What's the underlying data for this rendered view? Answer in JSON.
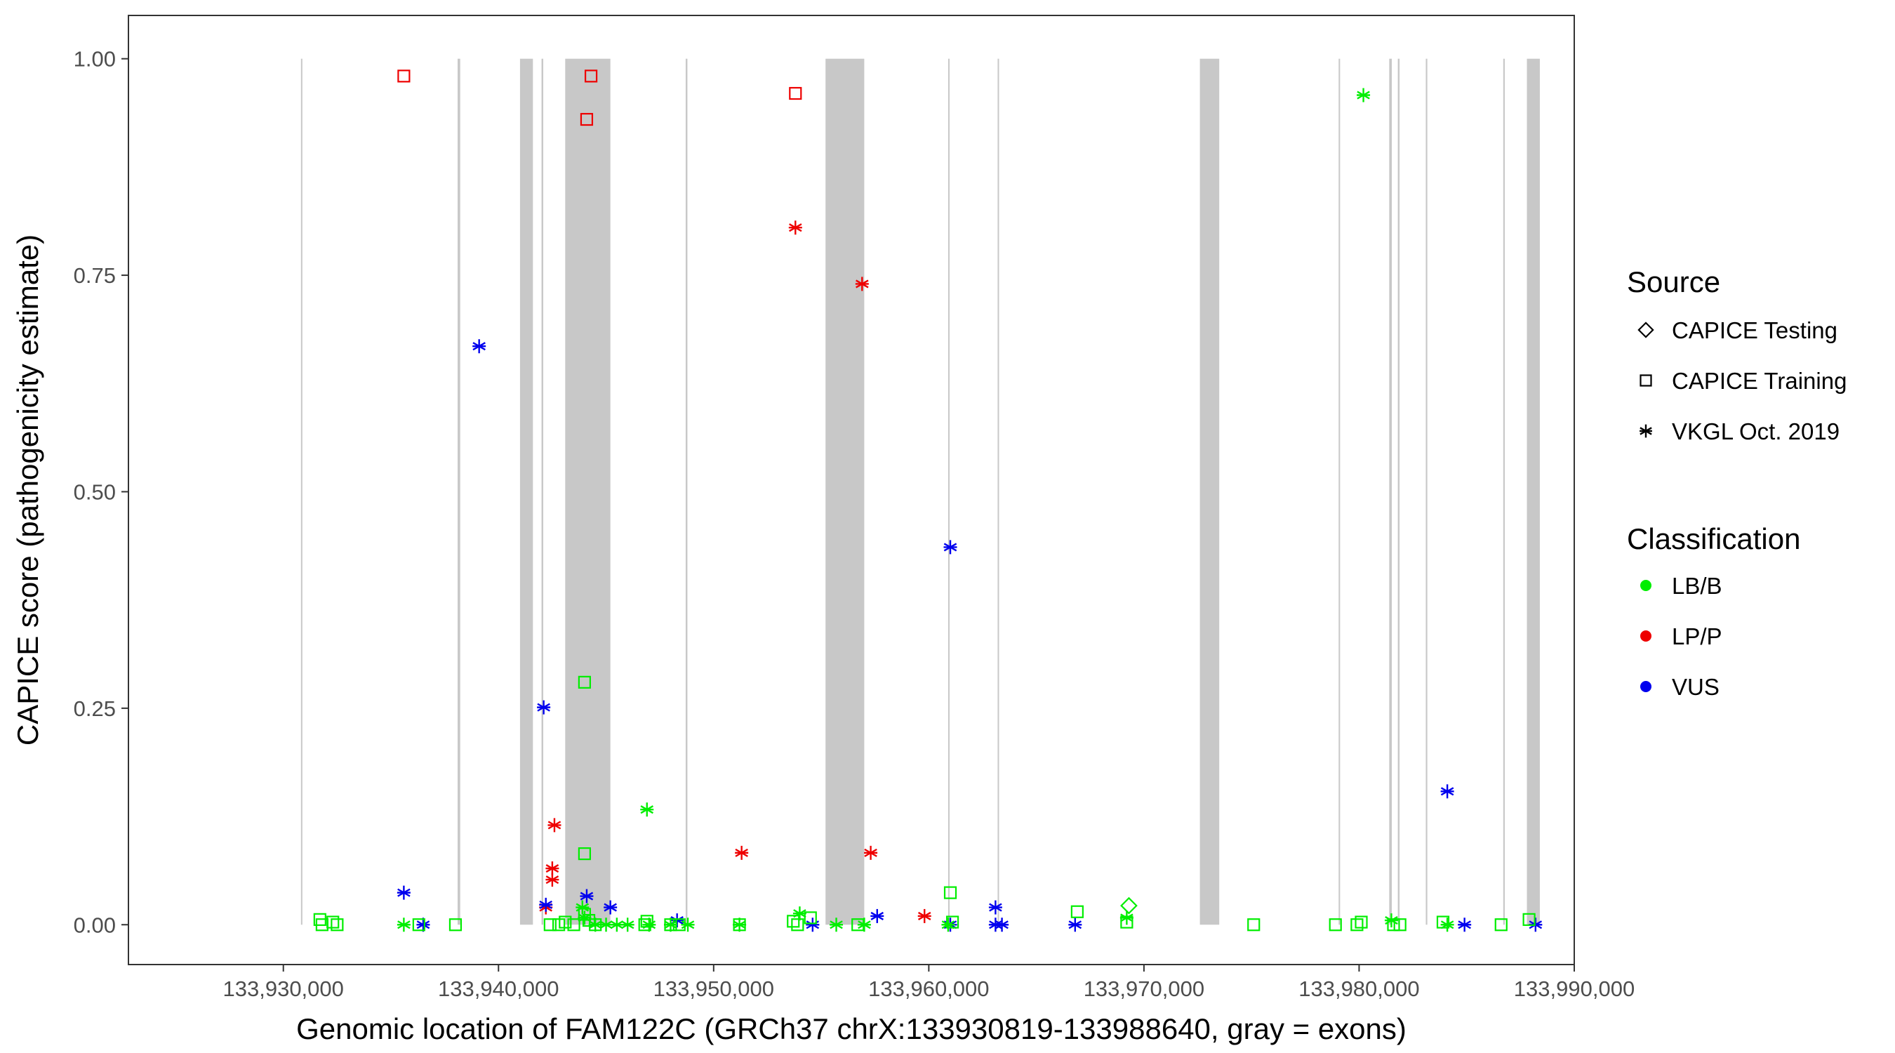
{
  "chart_data": {
    "type": "scatter",
    "title": "",
    "xlabel": "Genomic location of FAM122C (GRCh37 chrX:133930819-133988640, gray = exons)",
    "ylabel": "CAPICE score (pathogenicity estimate)",
    "xlim": [
      133922800,
      133990000
    ],
    "ylim": [
      -0.046,
      1.05
    ],
    "x_ticks": [
      133930000,
      133940000,
      133950000,
      133960000,
      133970000,
      133980000,
      133990000
    ],
    "x_tick_labels": [
      "133,930,000",
      "133,940,000",
      "133,950,000",
      "133,960,000",
      "133,970,000",
      "133,980,000",
      "133,990,000"
    ],
    "y_ticks": [
      0,
      0.25,
      0.5,
      0.75,
      1.0
    ],
    "y_tick_labels": [
      "0.00",
      "0.25",
      "0.50",
      "0.75",
      "1.00"
    ],
    "grid": false,
    "exons": [
      [
        133930819,
        133930880
      ],
      [
        133938100,
        133938220
      ],
      [
        133941000,
        133941600
      ],
      [
        133942000,
        133942080
      ],
      [
        133943100,
        133945200
      ],
      [
        133948700,
        133948780
      ],
      [
        133955200,
        133957000
      ],
      [
        133960900,
        133960960
      ],
      [
        133963200,
        133963260
      ],
      [
        133972600,
        133973500
      ],
      [
        133979050,
        133979110
      ],
      [
        133981400,
        133981520
      ],
      [
        133981800,
        133981880
      ],
      [
        133983100,
        133983170
      ],
      [
        133986700,
        133986770
      ],
      [
        133987800,
        133988400
      ]
    ],
    "legend": {
      "position": "right",
      "source_title": "Source",
      "source_entries": [
        {
          "label": "CAPICE Testing",
          "shape": "diamond"
        },
        {
          "label": "CAPICE Training",
          "shape": "square"
        },
        {
          "label": "VKGL Oct. 2019",
          "shape": "asterisk"
        }
      ],
      "class_title": "Classification",
      "class_entries": [
        {
          "label": "LB/B",
          "color": "#00ee00"
        },
        {
          "label": "LP/P",
          "color": "#ee0000"
        },
        {
          "label": "VUS",
          "color": "#0000ee"
        }
      ]
    },
    "series": [
      {
        "source": "CAPICE Training",
        "classification": "LP/P",
        "points": [
          [
            133935600,
            0.98
          ],
          [
            133944300,
            0.98
          ],
          [
            133944100,
            0.93
          ],
          [
            133953800,
            0.96
          ]
        ]
      },
      {
        "source": "VKGL Oct. 2019",
        "classification": "LP/P",
        "points": [
          [
            133953800,
            0.805
          ],
          [
            133956900,
            0.74
          ],
          [
            133942600,
            0.115
          ],
          [
            133942500,
            0.065
          ],
          [
            133942500,
            0.052
          ],
          [
            133942200,
            0.02
          ],
          [
            133951300,
            0.083
          ],
          [
            133957300,
            0.083
          ],
          [
            133959800,
            0.01
          ]
        ]
      },
      {
        "source": "VKGL Oct. 2019",
        "classification": "VUS",
        "points": [
          [
            133939100,
            0.668
          ],
          [
            133961000,
            0.436
          ],
          [
            133942100,
            0.251
          ],
          [
            133984100,
            0.154
          ],
          [
            133935600,
            0.037
          ],
          [
            133944100,
            0.033
          ],
          [
            133942200,
            0.023
          ],
          [
            133945200,
            0.02
          ],
          [
            133963100,
            0.02
          ],
          [
            133936500,
            0.0
          ],
          [
            133948300,
            0.005
          ],
          [
            133954600,
            0.0
          ],
          [
            133957600,
            0.01
          ],
          [
            133961000,
            0.0
          ],
          [
            133963100,
            0.0
          ],
          [
            133963400,
            0.0
          ],
          [
            133966800,
            0.0
          ],
          [
            133984900,
            0.0
          ],
          [
            133988200,
            0.0
          ]
        ]
      },
      {
        "source": "VKGL Oct. 2019",
        "classification": "LB/B",
        "points": [
          [
            133980200,
            0.958
          ],
          [
            133946900,
            0.133
          ],
          [
            133935600,
            0.0
          ],
          [
            133943900,
            0.02
          ],
          [
            133944000,
            0.008
          ],
          [
            133944500,
            0.0
          ],
          [
            133945000,
            0.0
          ],
          [
            133945500,
            0.0
          ],
          [
            133946000,
            0.0
          ],
          [
            133947000,
            0.0
          ],
          [
            133948000,
            0.0
          ],
          [
            133948800,
            0.0
          ],
          [
            133951200,
            0.0
          ],
          [
            133954000,
            0.013
          ],
          [
            133955700,
            0.0
          ],
          [
            133957000,
            0.0
          ],
          [
            133960900,
            0.0
          ],
          [
            133969200,
            0.008
          ],
          [
            133981500,
            0.005
          ],
          [
            133984100,
            0.0
          ]
        ]
      },
      {
        "source": "CAPICE Training",
        "classification": "LB/B",
        "points": [
          [
            133931700,
            0.006
          ],
          [
            133931800,
            0.0
          ],
          [
            133932300,
            0.003
          ],
          [
            133932500,
            0.0
          ],
          [
            133936300,
            0.0
          ],
          [
            133938000,
            0.0
          ],
          [
            133942400,
            0.0
          ],
          [
            133942800,
            0.0
          ],
          [
            133943100,
            0.003
          ],
          [
            133943500,
            0.0
          ],
          [
            133944000,
            0.28
          ],
          [
            133944000,
            0.082
          ],
          [
            133944000,
            0.012
          ],
          [
            133944200,
            0.005
          ],
          [
            133944500,
            0.0
          ],
          [
            133946900,
            0.004
          ],
          [
            133946800,
            0.0
          ],
          [
            133948000,
            0.0
          ],
          [
            133948400,
            0.0
          ],
          [
            133951200,
            0.0
          ],
          [
            133953700,
            0.004
          ],
          [
            133953900,
            0.0
          ],
          [
            133954500,
            0.008
          ],
          [
            133956700,
            0.0
          ],
          [
            133961000,
            0.037
          ],
          [
            133961100,
            0.003
          ],
          [
            133966900,
            0.015
          ],
          [
            133969200,
            0.003
          ],
          [
            133975100,
            0.0
          ],
          [
            133978900,
            0.0
          ],
          [
            133979900,
            0.0
          ],
          [
            133980100,
            0.003
          ],
          [
            133981600,
            0.0
          ],
          [
            133981900,
            0.0
          ],
          [
            133983900,
            0.003
          ],
          [
            133986600,
            0.0
          ],
          [
            133987900,
            0.006
          ]
        ]
      },
      {
        "source": "CAPICE Testing",
        "classification": "LB/B",
        "points": [
          [
            133969300,
            0.022
          ]
        ]
      }
    ]
  }
}
